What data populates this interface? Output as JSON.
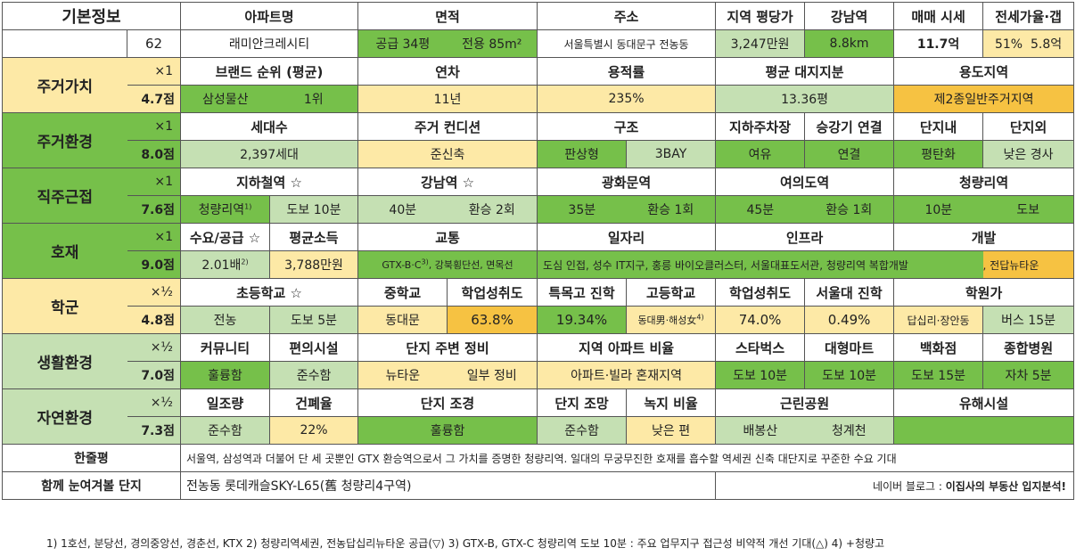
{
  "basic": {
    "label": "기본정보",
    "number": "62",
    "headers": [
      "아파트명",
      "면적",
      "주소",
      "지역 평당가",
      "강남역",
      "매매 시세",
      "전세가율·갭"
    ],
    "apt_name": "래미안크레시티",
    "area_supply": "공급 34평",
    "area_exclusive": "전용 85m²",
    "address": "서울특별시 동대문구 전농동",
    "price_per_pyeong": "3,247만원",
    "gangnam_distance": "8.8km",
    "sale_price": "11.7억",
    "jeonse_ratio": "51%",
    "jeonse_gap": "5.8억"
  },
  "residential_value": {
    "label": "주거가치",
    "multiplier": "×1",
    "score": "4.7점",
    "headers": [
      "브랜드 순위 (평균)",
      "연차",
      "용적률",
      "평균 대지지분",
      "용도지역"
    ],
    "brand": "삼성물산",
    "brand_rank": "1위",
    "age": "11년",
    "far": "235%",
    "land_share": "13.36평",
    "zoning": "제2종일반주거지역"
  },
  "residential_env": {
    "label": "주거환경",
    "multiplier": "×1",
    "score": "8.0점",
    "headers": [
      "세대수",
      "주거 컨디션",
      "구조",
      "지하주차장",
      "승강기 연결",
      "단지내",
      "단지외"
    ],
    "households": "2,397세대",
    "condition": "준신축",
    "structure_type": "판상형",
    "bay": "3BAY",
    "parking": "여유",
    "elevator": "연결",
    "inner": "평탄화",
    "outer": "낮은 경사"
  },
  "commute": {
    "label": "직주근접",
    "multiplier": "×1",
    "score": "7.6점",
    "headers": [
      "지하철역 ☆",
      "강남역 ☆",
      "광화문역",
      "여의도역",
      "청량리역"
    ],
    "station": "청량리역",
    "station_sup": "1)",
    "station_walk": "도보 10분",
    "gangnam_time": "40분",
    "gangnam_transfer": "환승 2회",
    "gwanghwamun_time": "35분",
    "gwanghwamun_transfer": "환승 1회",
    "yeouido_time": "45분",
    "yeouido_transfer": "환승 1회",
    "cheongnyangni_time": "10분",
    "cheongnyangni_mode": "도보"
  },
  "development": {
    "label": "호재",
    "multiplier": "×1",
    "score": "9.0점",
    "headers": [
      "수요/공급 ☆",
      "평균소득",
      "교통",
      "일자리",
      "인프라",
      "개발"
    ],
    "supply_demand": "2.01배",
    "supply_sup": "2)",
    "income": "3,788만원",
    "transport": "GTX-B·C",
    "transport_sup": "3)",
    "transport_rest": ", 강북횡단선, 면목선",
    "jobs_infra": "도심 인접, 성수 IT지구, 홍릉 바이오클러스터, 서울대표도서관, 청량리역 복합개발",
    "dev": ", 전답뉴타운"
  },
  "school": {
    "label": "학군",
    "multiplier": "×½",
    "score": "4.8점",
    "headers": [
      "초등학교 ☆",
      "중학교",
      "학업성취도",
      "특목고 진학",
      "고등학교",
      "학업성취도",
      "서울대 진학",
      "학원가"
    ],
    "elementary": "전농",
    "elementary_walk": "도보 5분",
    "middle": "동대문",
    "middle_achv": "63.8%",
    "special_hs": "19.34%",
    "high": "동대男·해성女",
    "high_sup": "4)",
    "high_achv": "74.0%",
    "snu": "0.49%",
    "academy": "답십리·장안동",
    "academy_bus": "버스 15분"
  },
  "living": {
    "label": "생활환경",
    "multiplier": "×½",
    "score": "7.0점",
    "headers": [
      "커뮤니티",
      "편의시설",
      "단지 주변 정비",
      "지역 아파트 비율",
      "스타벅스",
      "대형마트",
      "백화점",
      "종합병원"
    ],
    "community": "훌륭함",
    "convenience": "준수함",
    "surround_a": "뉴타운",
    "surround_b": "일부 정비",
    "apt_ratio": "아파트·빌라 혼재지역",
    "starbucks": "도보 10분",
    "mart": "도보 10분",
    "department": "도보 15분",
    "hospital": "자차 5분"
  },
  "nature": {
    "label": "자연환경",
    "multiplier": "×½",
    "score": "7.3점",
    "headers": [
      "일조량",
      "건폐율",
      "단지 조경",
      "단지 조망",
      "녹지 비율",
      "근린공원",
      "유해시설"
    ],
    "sunlight": "준수함",
    "bcr": "22%",
    "landscape": "훌륭함",
    "view": "준수함",
    "green": "낮은 편",
    "park_a": "배봉산",
    "park_b": "청계천",
    "hazard": ""
  },
  "summary": {
    "label": "한줄평",
    "text": "서울역, 삼성역과 더불어 단 세 곳뿐인 GTX 환승역으로서 그 가치를 증명한 청량리역. 일대의 무궁무진한 호재를 흡수할 역세권 신축 대단지로 꾸준한 수요 기대"
  },
  "compare": {
    "label": "함께 눈여겨볼 단지",
    "text": "전농동 롯데캐슬SKY-L65(舊 청량리4구역)",
    "blog": "네이버 블로그 : ",
    "blog_bold": "이집사의 부동산 입지분석!"
  },
  "footnote": "1) 1호선, 분당선, 경의중앙선, 경춘선, KTX 2) 청량리역세권, 전농답십리뉴타운 공급(▽) 3) GTX-B, GTX-C 청량리역 도보 10분 : 주요 업무지구 접근성 비약적 개선 기대(△) 4) +청량고"
}
